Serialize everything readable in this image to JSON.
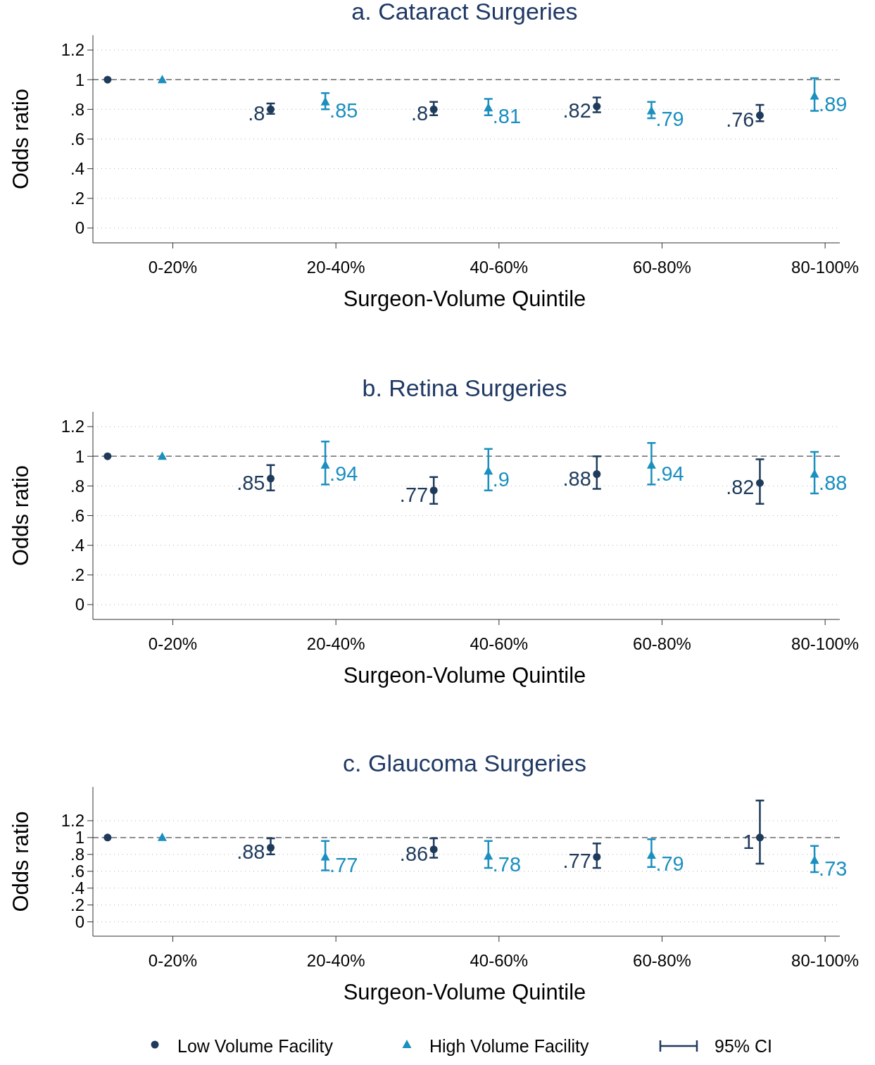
{
  "chart_data": [
    {
      "type": "scatter",
      "title": "a. Cataract Surgeries",
      "xlabel": "Surgeon-Volume Quintile",
      "ylabel": "Odds ratio",
      "categories": [
        "0-20%",
        "20-40%",
        "40-60%",
        "60-80%",
        "80-100%"
      ],
      "ylim": [
        -0.1,
        1.3
      ],
      "yticks": [
        0,
        {
          "value": 0.2,
          "label": ".2"
        },
        {
          "value": 0.4,
          "label": ".4"
        },
        {
          "value": 0.6,
          "label": ".6"
        },
        {
          "value": 0.8,
          "label": ".8"
        },
        1,
        1.2
      ],
      "grid": "y",
      "ref_lines": [
        {
          "axis": "y",
          "value": 1,
          "color": "#7f7f7f",
          "line_style": "dashed"
        }
      ],
      "series": [
        {
          "color": "#1f3b5c",
          "marker": "circle",
          "values": [
            1,
            0.8,
            0.8,
            0.82,
            0.76
          ],
          "errors": [
            null,
            [
              0.77,
              0.84
            ],
            [
              0.76,
              0.85
            ],
            [
              0.78,
              0.88
            ],
            [
              0.72,
              0.83
            ]
          ],
          "value_labels": [
            null,
            ".8",
            ".8",
            ".82",
            ".76"
          ]
        },
        {
          "color": "#1a8fc0",
          "marker": "triangle",
          "values": [
            1,
            0.85,
            0.81,
            0.79,
            0.89
          ],
          "errors": [
            null,
            [
              0.8,
              0.91
            ],
            [
              0.76,
              0.87
            ],
            [
              0.74,
              0.85
            ],
            [
              0.79,
              1.01
            ]
          ],
          "value_labels": [
            null,
            ".85",
            ".81",
            ".79",
            ".89"
          ]
        }
      ]
    },
    {
      "type": "scatter",
      "title": "b. Retina Surgeries",
      "xlabel": "Surgeon-Volume Quintile",
      "ylabel": "Odds ratio",
      "categories": [
        "0-20%",
        "20-40%",
        "40-60%",
        "60-80%",
        "80-100%"
      ],
      "ylim": [
        -0.1,
        1.3
      ],
      "yticks": [
        0,
        {
          "value": 0.2,
          "label": ".2"
        },
        {
          "value": 0.4,
          "label": ".4"
        },
        {
          "value": 0.6,
          "label": ".6"
        },
        {
          "value": 0.8,
          "label": ".8"
        },
        1,
        1.2
      ],
      "grid": "y",
      "ref_lines": [
        {
          "axis": "y",
          "value": 1,
          "color": "#7f7f7f",
          "line_style": "dashed"
        }
      ],
      "series": [
        {
          "color": "#1f3b5c",
          "marker": "circle",
          "values": [
            1,
            0.85,
            0.77,
            0.88,
            0.82
          ],
          "errors": [
            null,
            [
              0.77,
              0.94
            ],
            [
              0.68,
              0.86
            ],
            [
              0.78,
              1.0
            ],
            [
              0.68,
              0.98
            ]
          ],
          "value_labels": [
            null,
            ".85",
            ".77",
            ".88",
            ".82"
          ]
        },
        {
          "color": "#1a8fc0",
          "marker": "triangle",
          "values": [
            1,
            0.94,
            0.9,
            0.94,
            0.88
          ],
          "errors": [
            null,
            [
              0.81,
              1.1
            ],
            [
              0.77,
              1.05
            ],
            [
              0.81,
              1.09
            ],
            [
              0.75,
              1.03
            ]
          ],
          "value_labels": [
            null,
            ".94",
            ".9",
            ".94",
            ".88"
          ]
        }
      ]
    },
    {
      "type": "scatter",
      "title": "c. Glaucoma Surgeries",
      "xlabel": "Surgeon-Volume Quintile",
      "ylabel": "Odds ratio",
      "categories": [
        "0-20%",
        "20-40%",
        "40-60%",
        "60-80%",
        "80-100%"
      ],
      "ylim": [
        -0.17,
        1.6
      ],
      "yticks": [
        0,
        {
          "value": 0.2,
          "label": ".2"
        },
        {
          "value": 0.4,
          "label": ".4"
        },
        {
          "value": 0.6,
          "label": ".6"
        },
        {
          "value": 0.8,
          "label": ".8"
        },
        1,
        1.2
      ],
      "grid": "y",
      "legend": "bottom",
      "annotations": [
        "95% CI"
      ],
      "ref_lines": [
        {
          "axis": "y",
          "value": 1,
          "color": "#7f7f7f",
          "line_style": "dashed"
        }
      ],
      "series": [
        {
          "name": "Low Volume Facility",
          "color": "#1f3b5c",
          "marker": "circle",
          "values": [
            1,
            0.88,
            0.86,
            0.77,
            1
          ],
          "errors": [
            null,
            [
              0.8,
              0.99
            ],
            [
              0.76,
              0.99
            ],
            [
              0.64,
              0.93
            ],
            [
              0.69,
              1.44
            ]
          ],
          "value_labels": [
            null,
            ".88",
            ".86",
            ".77",
            "1"
          ]
        },
        {
          "name": "High Volume Facility",
          "color": "#1a8fc0",
          "marker": "triangle",
          "values": [
            1,
            0.77,
            0.78,
            0.79,
            0.73
          ],
          "errors": [
            null,
            [
              0.61,
              0.96
            ],
            [
              0.64,
              0.96
            ],
            [
              0.65,
              0.98
            ],
            [
              0.59,
              0.9
            ]
          ],
          "value_labels": [
            null,
            ".77",
            ".78",
            ".79",
            ".73"
          ]
        }
      ]
    }
  ]
}
